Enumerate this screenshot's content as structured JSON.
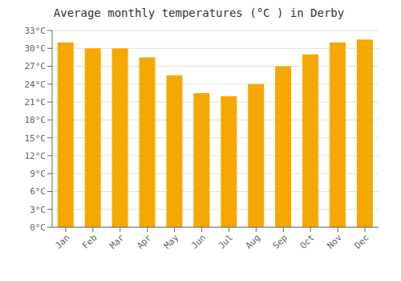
{
  "chart_data": {
    "type": "bar",
    "title": "Average monthly temperatures (°C ) in Derby",
    "categories": [
      "Jan",
      "Feb",
      "Mar",
      "Apr",
      "May",
      "Jun",
      "Jul",
      "Aug",
      "Sep",
      "Oct",
      "Nov",
      "Dec"
    ],
    "values": [
      31.0,
      30.0,
      30.0,
      28.5,
      25.5,
      22.5,
      22.0,
      24.0,
      27.0,
      29.0,
      31.0,
      31.5
    ],
    "color": "#F5A800",
    "ylim": [
      0,
      33
    ],
    "yticks": [
      {
        "value": 0,
        "label": "0°C"
      },
      {
        "value": 3,
        "label": "3°C"
      },
      {
        "value": 6,
        "label": "6°C"
      },
      {
        "value": 9,
        "label": "9°C"
      },
      {
        "value": 12,
        "label": "12°C"
      },
      {
        "value": 15,
        "label": "15°C"
      },
      {
        "value": 18,
        "label": "18°C"
      },
      {
        "value": 21,
        "label": "21°C"
      },
      {
        "value": 24,
        "label": "24°C"
      },
      {
        "value": 27,
        "label": "27°C"
      },
      {
        "value": 30,
        "label": "30°C"
      },
      {
        "value": 33,
        "label": "33°C"
      }
    ],
    "grid": true
  }
}
